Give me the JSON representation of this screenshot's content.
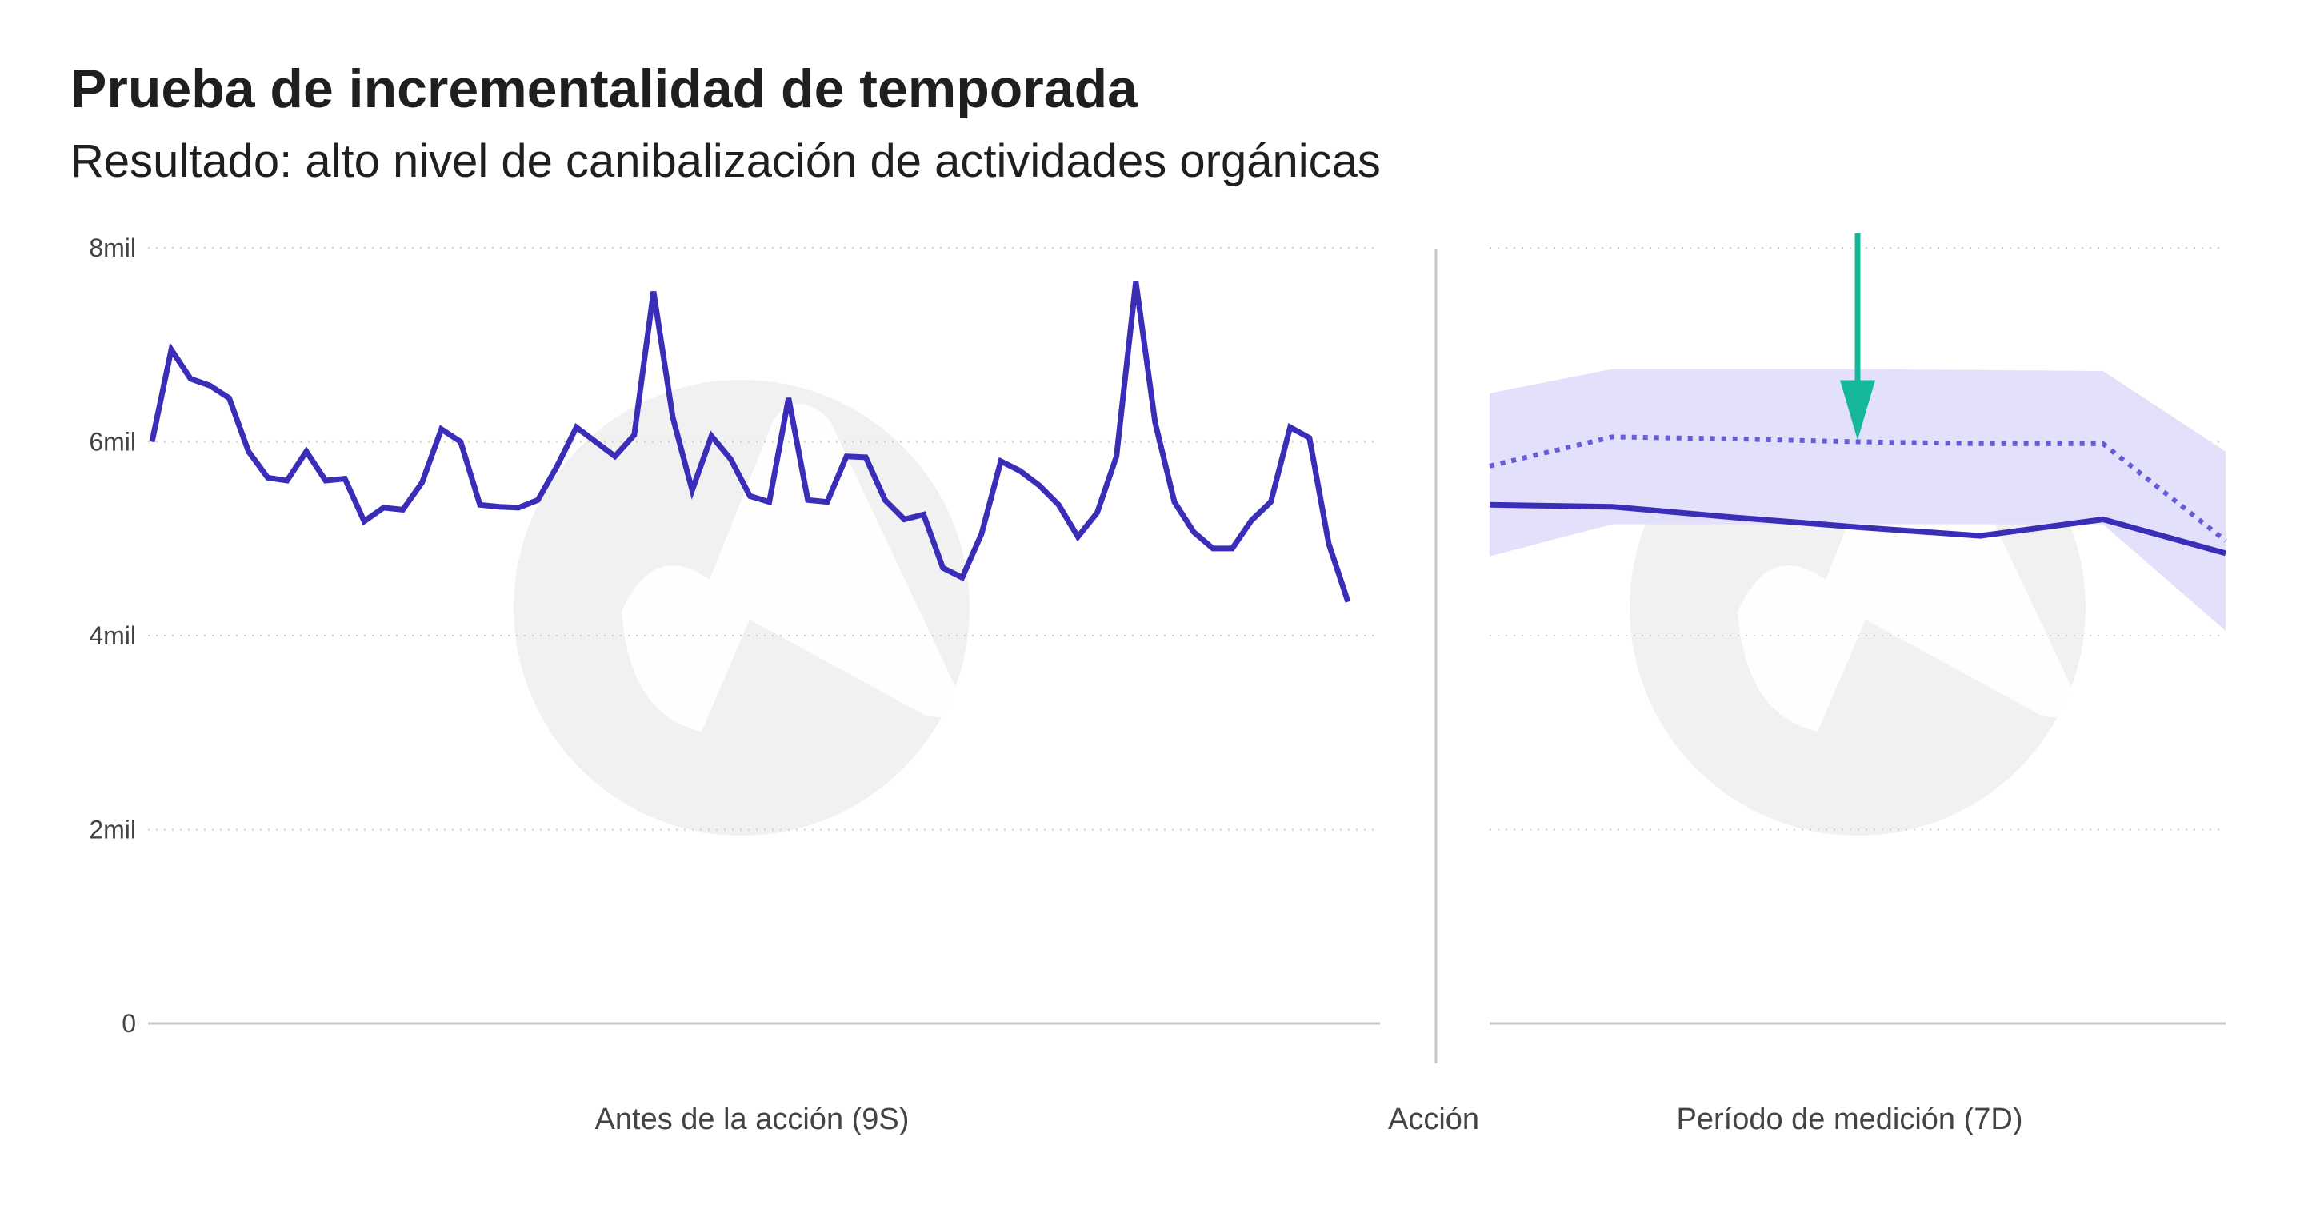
{
  "title": "Prueba de incrementalidad de temporada",
  "subtitle": "Resultado: alto nivel de canibalización de actividades orgánicas",
  "colors": {
    "actual": "#3a2db8",
    "forecast": "#6a5ad8",
    "band": "#e3e0fb",
    "arrow": "#16b89a",
    "grid": "#cfcfcf",
    "divider": "#c8c8c8",
    "axis": "#c8c8c8",
    "watermark": "#f1f1f1"
  },
  "watermark_icon": "logo-watermark-icon",
  "chart_data": {
    "type": "line",
    "ylim": [
      0,
      8000
    ],
    "yticks": [
      {
        "value": 0,
        "label": "0"
      },
      {
        "value": 2000,
        "label": "2mil"
      },
      {
        "value": 4000,
        "label": "4mil"
      },
      {
        "value": 6000,
        "label": "6mil"
      },
      {
        "value": 8000,
        "label": "8mil"
      }
    ],
    "grid": "horizontal-dotted",
    "panels": {
      "before": {
        "xlabel": "Antes de la acción (9S)",
        "x_count": 63,
        "values": [
          6000,
          6950,
          6650,
          6580,
          6450,
          5900,
          5630,
          5600,
          5900,
          5600,
          5620,
          5180,
          5320,
          5300,
          5580,
          6130,
          6000,
          5350,
          5330,
          5320,
          5400,
          5750,
          6150,
          6000,
          5850,
          6070,
          7550,
          6250,
          5500,
          6060,
          5820,
          5440,
          5380,
          6450,
          5400,
          5380,
          5850,
          5840,
          5400,
          5200,
          5250,
          4700,
          4600,
          5050,
          5800,
          5700,
          5550,
          5350,
          5020,
          5270,
          5850,
          7650,
          6200,
          5380,
          5070,
          4900,
          4900,
          5190,
          5380,
          6150,
          6040,
          4950,
          4350
        ]
      },
      "action_label": "Acción",
      "measurement": {
        "xlabel": "Período de medición (7D)",
        "x": [
          0,
          1,
          2,
          3,
          4,
          5,
          6
        ],
        "actual": [
          5350,
          5330,
          5220,
          5120,
          5030,
          5200,
          4850
        ],
        "forecast": [
          5750,
          6050,
          6030,
          6000,
          5980,
          5980,
          4980
        ],
        "band_upper": [
          6500,
          6750,
          6750,
          6750,
          6740,
          6730,
          5900
        ],
        "band_lower": [
          4820,
          5150,
          5150,
          5150,
          5150,
          5150,
          4050
        ],
        "arrow_at_x": 3
      }
    }
  }
}
